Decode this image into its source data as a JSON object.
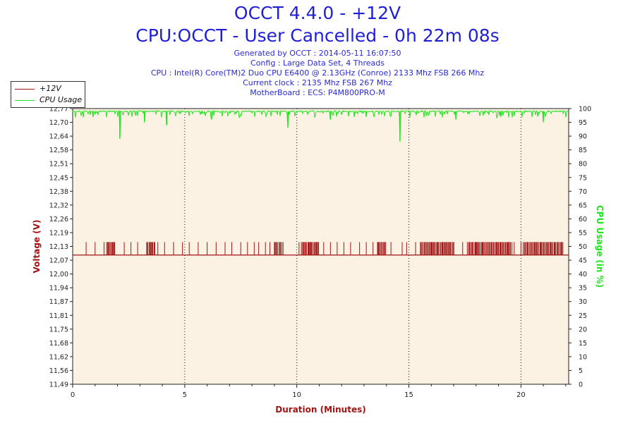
{
  "title_line1": "OCCT 4.4.0 - +12V",
  "title_line2": "CPU:OCCT - User Cancelled - 0h 22m 08s",
  "info_lines": [
    "Generated by OCCT : 2014-05-11 16:07:50",
    "Config : Large Data Set, 4 Threads",
    "CPU : Intel(R) Core(TM)2 Duo CPU E6400 @ 2.13GHz (Conroe) 2133 Mhz FSB 266 Mhz",
    "Current clock : 2135 Mhz FSB 267 Mhz",
    "MotherBoard : ECS: P4M800PRO-M"
  ],
  "colors": {
    "plot_bg": "#fbf2e3",
    "voltage": "#a01414",
    "cpu": "#1fe41f",
    "title": "#1f1fd6",
    "left_axis_label": "#a01414",
    "right_axis_label": "#1fe41f",
    "x_axis_label": "#a01414"
  },
  "chart_data": {
    "type": "line",
    "xlabel": "Duration (Minutes)",
    "ylabel_left": "Voltage (V)",
    "ylabel_right": "CPU Usage (in %)",
    "xlim": [
      0,
      22.13
    ],
    "ylim_left": [
      11.49,
      12.77
    ],
    "ylim_right": [
      0,
      100
    ],
    "x_ticks": [
      "0",
      "5",
      "10",
      "15",
      "20"
    ],
    "x_tick_values": [
      0,
      5,
      10,
      15,
      20
    ],
    "y_left_ticks": [
      "12,77",
      "12,70",
      "12,64",
      "12,58",
      "12,51",
      "12,45",
      "12,38",
      "12,32",
      "12,26",
      "12,19",
      "12,13",
      "12,07",
      "12,00",
      "11,94",
      "11,87",
      "11,81",
      "11,75",
      "11,68",
      "11,62",
      "11,56",
      "11,49"
    ],
    "y_right_ticks": [
      "100",
      "95",
      "90",
      "85",
      "80",
      "75",
      "70",
      "65",
      "60",
      "55",
      "50",
      "45",
      "40",
      "35",
      "30",
      "25",
      "20",
      "15",
      "10",
      "5",
      "0"
    ],
    "grid": "dotted vertical at x ticks",
    "legend_position": "top-left",
    "series": [
      {
        "name": "+12V",
        "axis": "left",
        "baseline": 12.09,
        "alt_value": 12.15,
        "note_values": "toggles between baseline and alt_value",
        "spike_times": [
          0.6,
          1.0,
          1.4,
          1.6,
          1.8,
          2.3,
          2.6,
          2.9,
          3.3,
          3.5,
          3.8,
          4.1,
          4.5,
          4.9,
          5.2,
          5.6,
          6.0,
          6.4,
          6.8,
          7.1,
          7.5,
          7.8,
          8.1,
          8.3,
          8.6,
          8.8,
          9.0,
          10.1,
          10.3,
          10.6,
          10.9,
          11.2,
          11.5,
          11.8,
          12.1,
          12.4,
          12.8,
          13.1,
          13.4,
          13.6,
          14.2,
          14.7,
          14.9,
          15.3,
          15.7,
          16.0,
          16.3,
          16.5,
          16.8,
          17.0,
          17.4,
          17.7,
          18.0,
          18.3,
          18.6,
          18.9,
          19.1,
          19.4,
          19.7,
          20.0,
          20.3,
          20.6,
          20.9,
          21.2,
          21.5,
          21.8
        ],
        "dense_ranges": [
          [
            1.5,
            1.9
          ],
          [
            3.3,
            3.7
          ],
          [
            9.0,
            9.4
          ],
          [
            10.2,
            11.0
          ],
          [
            13.6,
            14.0
          ],
          [
            15.5,
            17.0
          ],
          [
            17.6,
            19.6
          ],
          [
            20.1,
            21.9
          ]
        ]
      },
      {
        "name": "CPU Usage",
        "axis": "right",
        "baseline": 99,
        "dips": [
          {
            "x": 2.1,
            "y": 89
          },
          {
            "x": 14.6,
            "y": 88
          },
          {
            "x": 9.6,
            "y": 93
          },
          {
            "x": 4.2,
            "y": 94
          },
          {
            "x": 3.2,
            "y": 95
          },
          {
            "x": 6.2,
            "y": 96
          },
          {
            "x": 11.5,
            "y": 96
          },
          {
            "x": 17.1,
            "y": 96
          },
          {
            "x": 21.0,
            "y": 95
          },
          {
            "x": 19.1,
            "y": 97
          },
          {
            "x": 0.9,
            "y": 97
          },
          {
            "x": 13.1,
            "y": 97
          }
        ]
      }
    ]
  }
}
